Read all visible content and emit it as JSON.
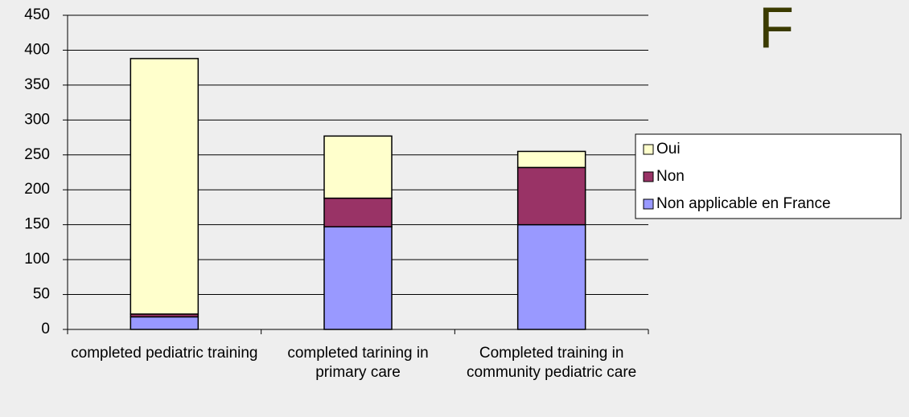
{
  "chart_data": {
    "type": "stacked_bar",
    "title": "F",
    "categories": [
      "completed pediatric training",
      "completed tarining in primary care",
      "Completed training in community pediatric care"
    ],
    "series": [
      {
        "name": "Non applicable en France",
        "color": "#9999ff",
        "values": [
          18,
          147,
          150
        ]
      },
      {
        "name": "Non",
        "color": "#993366",
        "values": [
          4,
          41,
          82
        ]
      },
      {
        "name": "Oui",
        "color": "#ffffcc",
        "values": [
          366,
          89,
          23
        ]
      }
    ],
    "ylim": [
      0,
      450
    ],
    "yticks": [
      0,
      50,
      100,
      150,
      200,
      250,
      300,
      350,
      400,
      450
    ],
    "grid": true,
    "legend": "right"
  }
}
